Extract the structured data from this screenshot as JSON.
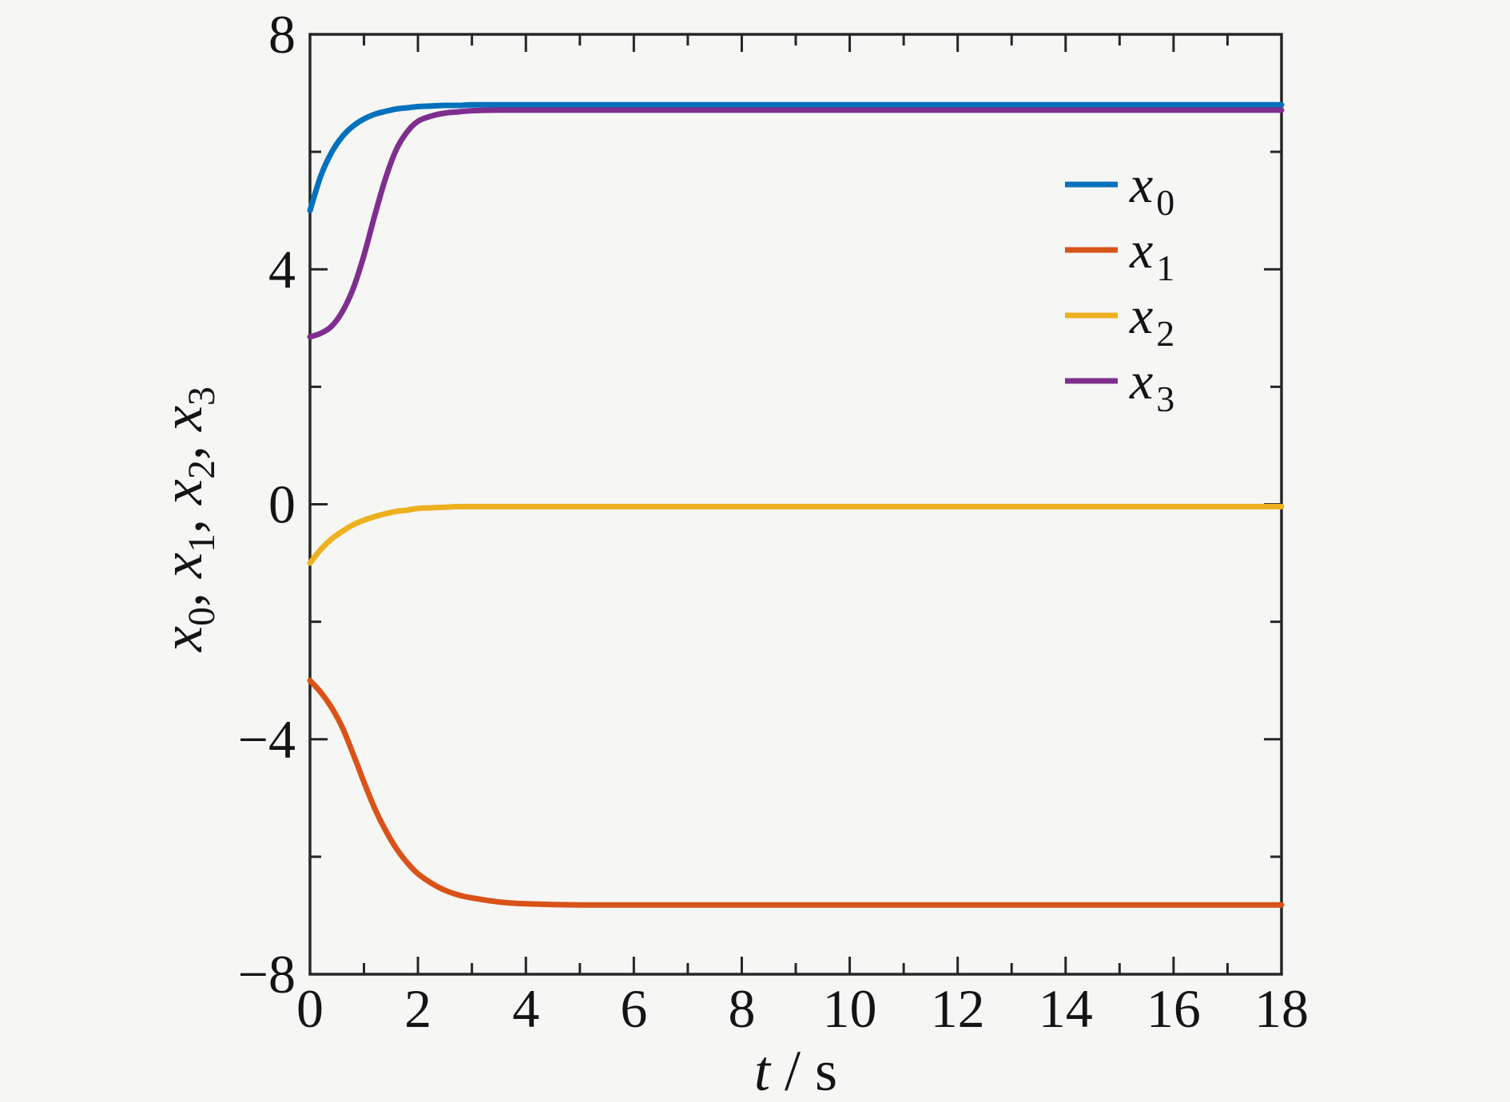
{
  "figure": {
    "background": "#f6f6f5",
    "axis_color": "#262626",
    "text_color": "#141414"
  },
  "axes": {
    "xlabel": {
      "var": "t",
      "sep": " / ",
      "unit": "s"
    },
    "ylabel_vars": [
      {
        "base": "x",
        "sub": "0"
      },
      {
        "base": "x",
        "sub": "1"
      },
      {
        "base": "x",
        "sub": "2"
      },
      {
        "base": "x",
        "sub": "3"
      }
    ],
    "ylabel_separator": ", ",
    "x_ticks_major": [
      0,
      2,
      4,
      6,
      8,
      10,
      12,
      14,
      16,
      18
    ],
    "x_tick_labels": [
      "0",
      "2",
      "4",
      "6",
      "8",
      "10",
      "12",
      "14",
      "16",
      "18"
    ],
    "x_ticks_minor": [
      1,
      3,
      5,
      7,
      9,
      11,
      13,
      15,
      17
    ],
    "y_ticks_major": [
      -8,
      -4,
      0,
      4,
      8
    ],
    "y_tick_labels": [
      "−8",
      "−4",
      "0",
      "4",
      "8"
    ],
    "y_ticks_minor": [
      -6,
      -2,
      2,
      6
    ],
    "xlim": [
      0,
      18
    ],
    "ylim": [
      -8,
      8
    ]
  },
  "legend": {
    "position": "upper-right-inside",
    "frame": false,
    "entries": [
      {
        "base": "x",
        "sub": "0",
        "color": "#0072BD"
      },
      {
        "base": "x",
        "sub": "1",
        "color": "#D95319"
      },
      {
        "base": "x",
        "sub": "2",
        "color": "#EDB120"
      },
      {
        "base": "x",
        "sub": "3",
        "color": "#7E2F8E"
      }
    ]
  },
  "chart_data": {
    "type": "line",
    "title": "",
    "xlabel": "t / s",
    "ylabel": "x_0, x_1, x_2, x_3",
    "xlim": [
      0,
      18
    ],
    "ylim": [
      -8,
      8
    ],
    "grid": false,
    "legend_position": "upper right",
    "x": [
      0,
      0.2,
      0.4,
      0.6,
      0.8,
      1.0,
      1.2,
      1.4,
      1.6,
      1.8,
      2.0,
      2.25,
      2.5,
      2.75,
      3.0,
      3.5,
      4.0,
      5.0,
      6.0,
      8.0,
      10.0,
      12.0,
      14.0,
      16.0,
      18.0
    ],
    "series": [
      {
        "name": "x_0",
        "color": "#0072BD",
        "values": [
          5.0,
          5.59,
          5.99,
          6.26,
          6.44,
          6.56,
          6.64,
          6.69,
          6.73,
          6.75,
          6.77,
          6.78,
          6.79,
          6.79,
          6.8,
          6.8,
          6.8,
          6.8,
          6.8,
          6.8,
          6.8,
          6.8,
          6.8,
          6.8,
          6.8
        ]
      },
      {
        "name": "x_1",
        "color": "#D95319",
        "values": [
          -3.0,
          -3.2,
          -3.46,
          -3.8,
          -4.25,
          -4.73,
          -5.18,
          -5.55,
          -5.86,
          -6.1,
          -6.29,
          -6.45,
          -6.57,
          -6.65,
          -6.7,
          -6.77,
          -6.8,
          -6.82,
          -6.82,
          -6.82,
          -6.82,
          -6.82,
          -6.82,
          -6.82,
          -6.82
        ]
      },
      {
        "name": "x_2",
        "color": "#EDB120",
        "values": [
          -1.0,
          -0.77,
          -0.59,
          -0.46,
          -0.35,
          -0.27,
          -0.21,
          -0.16,
          -0.12,
          -0.1,
          -0.07,
          -0.06,
          -0.05,
          -0.04,
          -0.04,
          -0.04,
          -0.04,
          -0.04,
          -0.04,
          -0.04,
          -0.04,
          -0.04,
          -0.04,
          -0.04,
          -0.04
        ]
      },
      {
        "name": "x_3",
        "color": "#7E2F8E",
        "values": [
          2.85,
          2.91,
          3.03,
          3.28,
          3.67,
          4.24,
          4.92,
          5.55,
          6.04,
          6.34,
          6.52,
          6.61,
          6.66,
          6.68,
          6.7,
          6.71,
          6.71,
          6.71,
          6.71,
          6.71,
          6.71,
          6.71,
          6.71,
          6.71,
          6.71
        ]
      }
    ]
  }
}
